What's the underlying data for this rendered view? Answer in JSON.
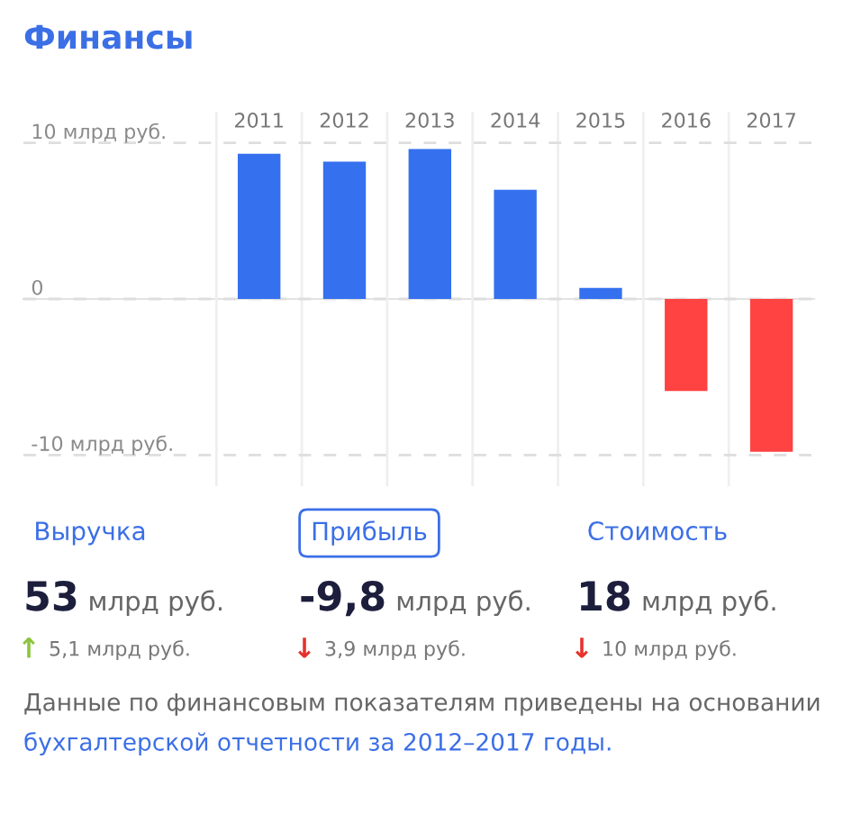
{
  "chart_data": [
    {
      "type": "bar",
      "title": "Финансы",
      "categories": [
        "2011",
        "2012",
        "2013",
        "2014",
        "2015",
        "2016",
        "2017"
      ],
      "values": [
        9.3,
        8.8,
        9.6,
        7.0,
        0.7,
        -5.9,
        -9.8
      ],
      "colors": [
        "#3570ef",
        "#3570ef",
        "#3570ef",
        "#3570ef",
        "#3570ef",
        "#ff4242",
        "#ff4242"
      ],
      "ylim": [
        -12,
        12
      ],
      "yticks": [
        {
          "value": 10,
          "label": "10 млрд руб."
        },
        0,
        {
          "value": -10,
          "label": "-10 млрд руб."
        }
      ],
      "grid": true
    },
    {
      "type": "other",
      "annotations": [
        "Выручка",
        "Прибыль",
        "Стоимость",
        "53",
        "-9,8",
        "18",
        "млрд руб.",
        "млрд руб.",
        "млрд руб.",
        "↑",
        "↓",
        "↓",
        "5,1 млрд руб.",
        "3,9 млрд руб.",
        "10 млрд руб.",
        "Данные по финансовым показателям приведены на основании",
        "бухгалтерской отчетности за 2012–2017 годы."
      ],
      "colors": [
        "#8bc53f",
        "#e8312c",
        "#e8312c"
      ]
    }
  ]
}
